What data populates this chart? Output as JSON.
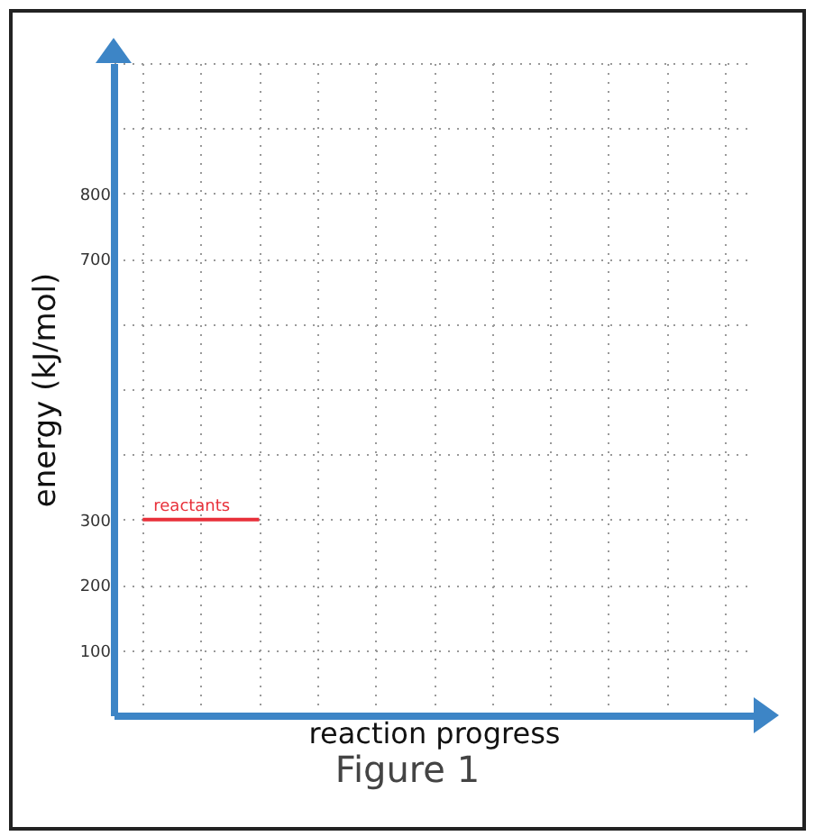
{
  "chart_data": {
    "type": "line",
    "xlabel": "reaction progress",
    "ylabel": "energy (kJ/mol)",
    "categories": [
      null,
      null,
      null,
      null,
      null,
      null,
      null,
      null,
      null,
      null,
      null
    ],
    "series": [
      {
        "name": "reactants",
        "color": "#e8303a",
        "values": [
          300,
          300,
          300,
          null,
          null,
          null,
          null,
          null,
          null,
          null,
          null
        ]
      }
    ],
    "ylim": [
      0,
      1000
    ],
    "yticks": [
      100,
      200,
      300,
      {
        "value": 400,
        "label": null
      },
      {
        "value": 500,
        "label": null
      },
      {
        "value": 600,
        "label": null
      },
      700,
      800,
      {
        "value": 900,
        "label": null
      },
      {
        "value": 1000,
        "label": null
      }
    ],
    "grid": true,
    "annotations": [
      "Figure 1"
    ]
  }
}
